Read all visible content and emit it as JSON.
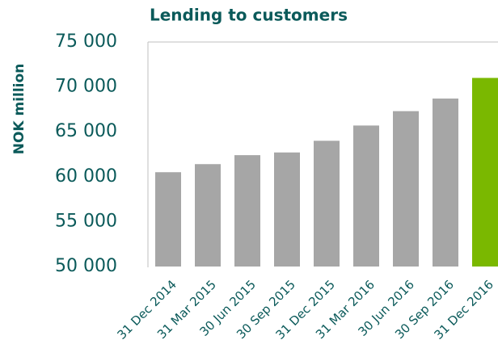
{
  "chart_data": {
    "type": "bar",
    "title": "Lending to customers",
    "y_label": "NOK million",
    "categories": [
      "31 Dec 2014",
      "31 Mar 2015",
      "30 Jun 2015",
      "30 Sep 2015",
      "31 Dec 2015",
      "31 Mar 2016",
      "30 Jun 2016",
      "30 Sep 2016",
      "31 Dec 2016"
    ],
    "values": [
      60500,
      61400,
      62400,
      62700,
      64000,
      65700,
      67300,
      68700,
      71000
    ],
    "colors": [
      "#a6a6a6",
      "#a6a6a6",
      "#a6a6a6",
      "#a6a6a6",
      "#a6a6a6",
      "#a6a6a6",
      "#a6a6a6",
      "#a6a6a6",
      "#7ab800"
    ],
    "ylim": [
      50000,
      75000
    ],
    "yticks": [
      {
        "value": 50000,
        "label": "50 000"
      },
      {
        "value": 55000,
        "label": "55 000"
      },
      {
        "value": 60000,
        "label": "60 000"
      },
      {
        "value": 65000,
        "label": "65 000"
      },
      {
        "value": 70000,
        "label": "70 000"
      },
      {
        "value": 75000,
        "label": "75 000"
      }
    ],
    "grid": false
  }
}
